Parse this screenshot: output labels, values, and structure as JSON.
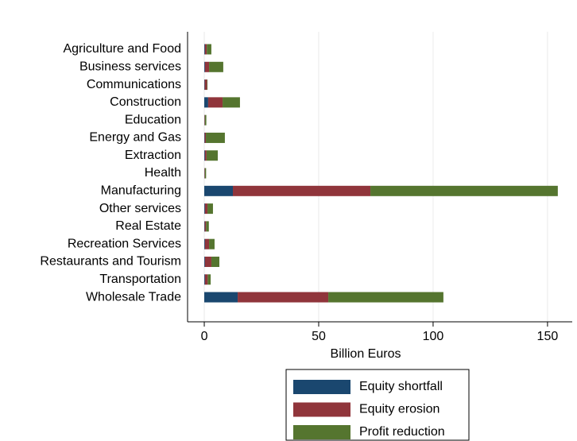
{
  "chart_data": {
    "type": "stacked_barh",
    "xlabel": "Billion Euros",
    "categories": [
      "Agriculture and Food",
      "Business services",
      "Communications",
      "Construction",
      "Education",
      "Energy and Gas",
      "Extraction",
      "Health",
      "Manufacturing",
      "Other services",
      "Real Estate",
      "Recreation Services",
      "Restaurants and Tourism",
      "Transportation",
      "Wholesale Trade"
    ],
    "series": [
      {
        "name": "Equity shortfall",
        "color": "#1a476f",
        "values": [
          0.3,
          0.3,
          0.2,
          1.7,
          0.1,
          0.2,
          0.3,
          0.1,
          12.5,
          0.3,
          0.2,
          0.3,
          0.3,
          0.3,
          14.6
        ]
      },
      {
        "name": "Equity erosion",
        "color": "#90353b",
        "values": [
          0.8,
          1.8,
          1.0,
          6.3,
          0.2,
          0.5,
          0.7,
          0.2,
          60.1,
          1.1,
          0.6,
          1.8,
          2.8,
          1.2,
          39.6
        ]
      },
      {
        "name": "Profit reduction",
        "color": "#55752f",
        "values": [
          2.0,
          6.2,
          0.2,
          7.6,
          0.6,
          8.3,
          4.9,
          0.5,
          81.9,
          2.4,
          1.2,
          2.4,
          3.5,
          1.3,
          50.3
        ]
      }
    ],
    "xlim": [
      -7.3,
      160.8
    ],
    "xticks": [
      0,
      50,
      100,
      150
    ],
    "grid": true,
    "legend": "bottom"
  }
}
